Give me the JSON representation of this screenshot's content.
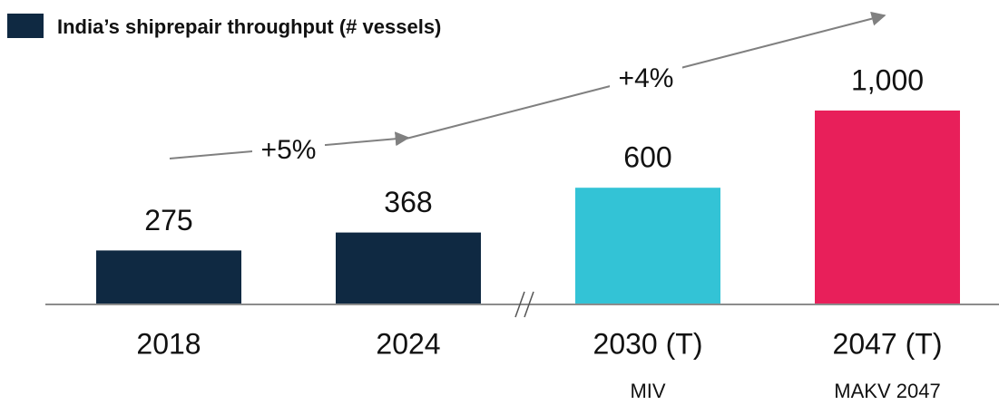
{
  "chart_data": {
    "type": "bar",
    "title": "India’s shiprepair throughput (# vessels)",
    "legend_color": "#0f2942",
    "categories": [
      "2018",
      "2024",
      "2030 (T)",
      "2047 (T)"
    ],
    "sublabels": [
      null,
      null,
      "MIV",
      "MAKV 2047"
    ],
    "values": [
      275,
      368,
      600,
      1000
    ],
    "value_labels": [
      "275",
      "368",
      "600",
      "1,000"
    ],
    "colors": [
      "#0f2942",
      "#0f2942",
      "#33c3d6",
      "#e81f5a"
    ],
    "annotations": [
      "+5%",
      "+4%"
    ]
  }
}
